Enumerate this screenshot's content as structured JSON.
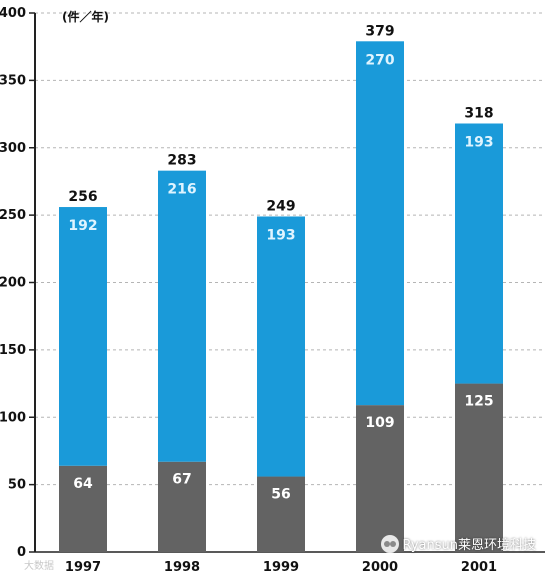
{
  "chart_data": {
    "type": "bar",
    "stacked": true,
    "unit": "(件／年)",
    "categories": [
      "1997",
      "1998",
      "1999",
      "2000",
      "2001"
    ],
    "totals": [
      256,
      283,
      249,
      379,
      318
    ],
    "series": [
      {
        "values": [
          64,
          67,
          56,
          109,
          125
        ],
        "color": "#636363"
      },
      {
        "values": [
          192,
          216,
          193,
          270,
          193
        ],
        "color": "#1a9ad9"
      }
    ],
    "ylim": [
      0,
      400
    ],
    "yticks": [
      0,
      50,
      100,
      150,
      200,
      250,
      300,
      350,
      400
    ],
    "grid": true,
    "grid_style": "dashed"
  },
  "watermark": {
    "text": "Ryansun莱恩环境科技",
    "icon": "wechat-icon"
  },
  "corner_mark": "大数据"
}
